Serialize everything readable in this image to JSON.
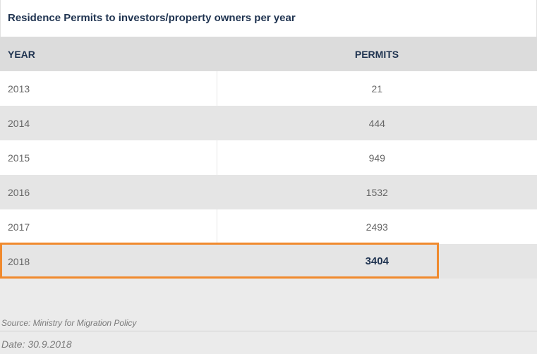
{
  "chart_data": {
    "type": "table",
    "title": "Residence Permits to investors/property owners per year",
    "columns": [
      "YEAR",
      "PERMITS"
    ],
    "rows": [
      {
        "year": "2013",
        "permits": "21"
      },
      {
        "year": "2014",
        "permits": "444"
      },
      {
        "year": "2015",
        "permits": "949"
      },
      {
        "year": "2016",
        "permits": "1532"
      },
      {
        "year": "2017",
        "permits": "2493"
      },
      {
        "year": "2018",
        "permits": "3404"
      }
    ],
    "highlighted_row": "2018"
  },
  "footer": {
    "source": "Source: Ministry for Migration Policy",
    "date": "Date: 30.9.2018"
  },
  "colors": {
    "header_text": "#1f3350",
    "highlight": "#f08a2e"
  }
}
